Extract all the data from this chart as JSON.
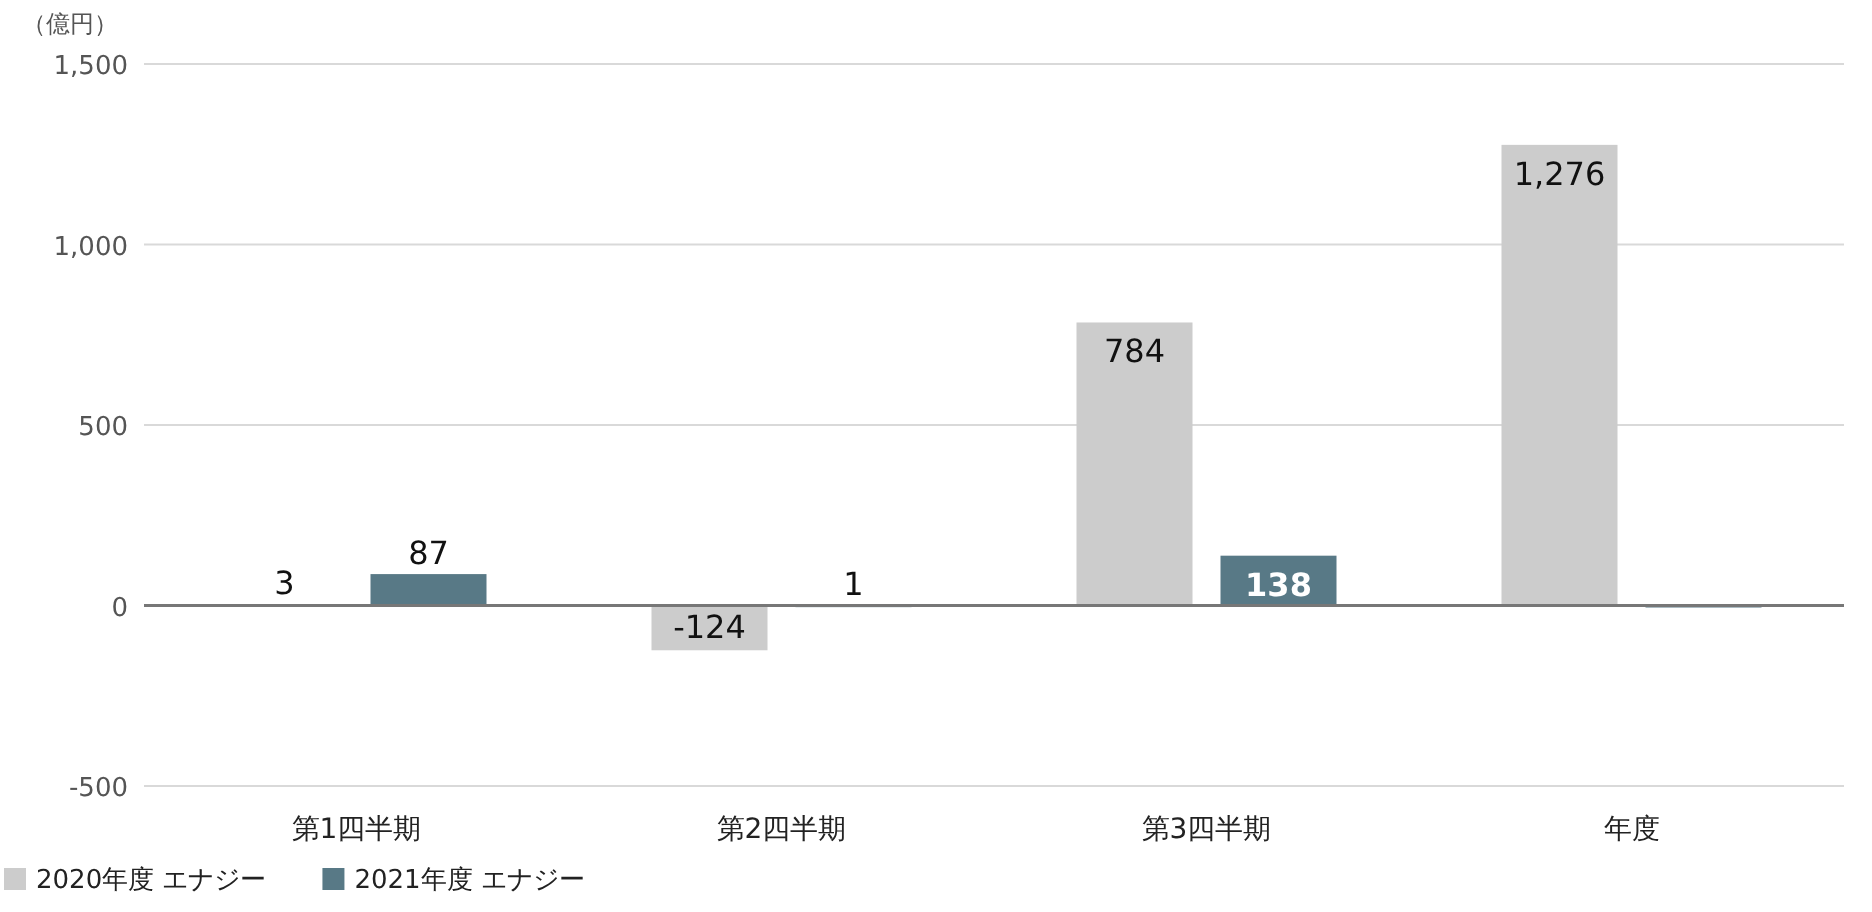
{
  "chart_data": {
    "type": "bar",
    "ylabel": "（億円）",
    "categories": [
      "第1四半期",
      "第2四半期",
      "第3四半期",
      "年度"
    ],
    "series": [
      {
        "name": "2020年度 エナジー",
        "color": "#cccccc",
        "values": [
          3,
          -124,
          784,
          1276
        ],
        "value_labels": [
          "3",
          "-124",
          "784",
          "1,276"
        ]
      },
      {
        "name": "2021年度 エナジー",
        "color": "#587986",
        "values": [
          87,
          1,
          138,
          0
        ],
        "value_labels": [
          "87",
          "1",
          "138",
          null
        ]
      }
    ],
    "ylim": [
      -500,
      1500
    ],
    "yticks": [
      {
        "value": -500,
        "label": "-500"
      },
      0,
      {
        "value": 500,
        "label": "500"
      },
      {
        "value": 1000,
        "label": "1,000"
      },
      {
        "value": 1500,
        "label": "1,500"
      }
    ],
    "grid": "y",
    "legend": "bottom left"
  }
}
